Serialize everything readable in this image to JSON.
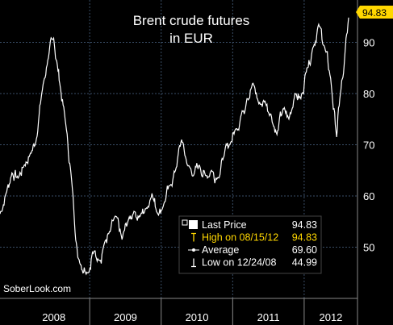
{
  "chart_data": {
    "type": "line",
    "title_lines": [
      "Brent crude futures",
      "in EUR"
    ],
    "x_range": [
      "2007-10-01",
      "2012-08-15"
    ],
    "ylim": [
      40,
      97
    ],
    "y_ticks": [
      50,
      60,
      70,
      80,
      90
    ],
    "x_tick_labels": [
      "2008",
      "2009",
      "2010",
      "2011",
      "2012"
    ],
    "x_year_bounds": [
      "2008-01-01",
      "2009-01-01",
      "2010-01-01",
      "2011-01-01",
      "2012-01-01"
    ],
    "grid": true,
    "last_value_label": "94.83",
    "watermark": "SoberLook.com",
    "colors": {
      "background": "#000000",
      "line": "#ffffff",
      "grid": "#3a4e67",
      "axis_text": "#ffffff",
      "last_tag": "#ffd700",
      "highlight": "#ffd700"
    },
    "legend": {
      "placement": "bottom-right",
      "rows": [
        {
          "symbol": "square",
          "label": "Last Price",
          "value": "94.83",
          "highlight": false
        },
        {
          "symbol": "high",
          "label": "High on 08/15/12",
          "value": "94.83",
          "highlight": true
        },
        {
          "symbol": "avg",
          "label": "Average",
          "value": "69.60",
          "highlight": false
        },
        {
          "symbol": "low",
          "label": "Low on 12/24/08",
          "value": "44.99",
          "highlight": false
        }
      ]
    },
    "series": [
      {
        "points": [
          [
            "2007-10-01",
            56.5
          ],
          [
            "2007-11-01",
            60.5
          ],
          [
            "2007-12-01",
            64.5
          ],
          [
            "2008-01-01",
            63.5
          ],
          [
            "2008-02-01",
            66
          ],
          [
            "2008-03-01",
            68
          ],
          [
            "2008-04-01",
            70.5
          ],
          [
            "2008-05-01",
            80
          ],
          [
            "2008-06-01",
            86.5
          ],
          [
            "2008-07-01",
            90.8
          ],
          [
            "2008-07-20",
            85.5
          ],
          [
            "2008-08-01",
            82
          ],
          [
            "2008-09-01",
            74
          ],
          [
            "2008-10-01",
            63
          ],
          [
            "2008-11-01",
            48
          ],
          [
            "2008-12-24",
            44.99
          ],
          [
            "2009-01-15",
            49
          ],
          [
            "2009-02-15",
            47.5
          ],
          [
            "2009-03-15",
            50.5
          ],
          [
            "2009-04-15",
            53
          ],
          [
            "2009-05-15",
            56
          ],
          [
            "2009-06-15",
            51.5
          ],
          [
            "2009-07-15",
            55
          ],
          [
            "2009-08-15",
            57
          ],
          [
            "2009-09-15",
            56
          ],
          [
            "2009-10-15",
            57.5
          ],
          [
            "2009-11-15",
            60.5
          ],
          [
            "2009-12-15",
            56.5
          ],
          [
            "2010-01-15",
            58.5
          ],
          [
            "2010-02-15",
            62
          ],
          [
            "2010-03-15",
            65
          ],
          [
            "2010-04-15",
            71
          ],
          [
            "2010-05-15",
            66
          ],
          [
            "2010-06-15",
            64
          ],
          [
            "2010-07-15",
            66
          ],
          [
            "2010-08-15",
            64
          ],
          [
            "2010-09-15",
            65
          ],
          [
            "2010-10-15",
            63.5
          ],
          [
            "2010-11-15",
            67.5
          ],
          [
            "2010-12-15",
            70
          ],
          [
            "2011-01-15",
            73
          ],
          [
            "2011-02-15",
            76
          ],
          [
            "2011-03-15",
            79
          ],
          [
            "2011-04-15",
            82
          ],
          [
            "2011-05-15",
            78
          ],
          [
            "2011-06-15",
            78.5
          ],
          [
            "2011-07-15",
            76
          ],
          [
            "2011-08-15",
            72
          ],
          [
            "2011-09-15",
            77
          ],
          [
            "2011-10-15",
            75
          ],
          [
            "2011-11-15",
            80
          ],
          [
            "2011-12-15",
            79
          ],
          [
            "2012-01-15",
            85
          ],
          [
            "2012-02-15",
            89
          ],
          [
            "2012-03-15",
            93.5
          ],
          [
            "2012-04-15",
            89
          ],
          [
            "2012-05-15",
            83
          ],
          [
            "2012-06-15",
            71.5
          ],
          [
            "2012-07-01",
            79
          ],
          [
            "2012-07-20",
            84
          ],
          [
            "2012-08-15",
            94.83
          ]
        ]
      }
    ]
  }
}
